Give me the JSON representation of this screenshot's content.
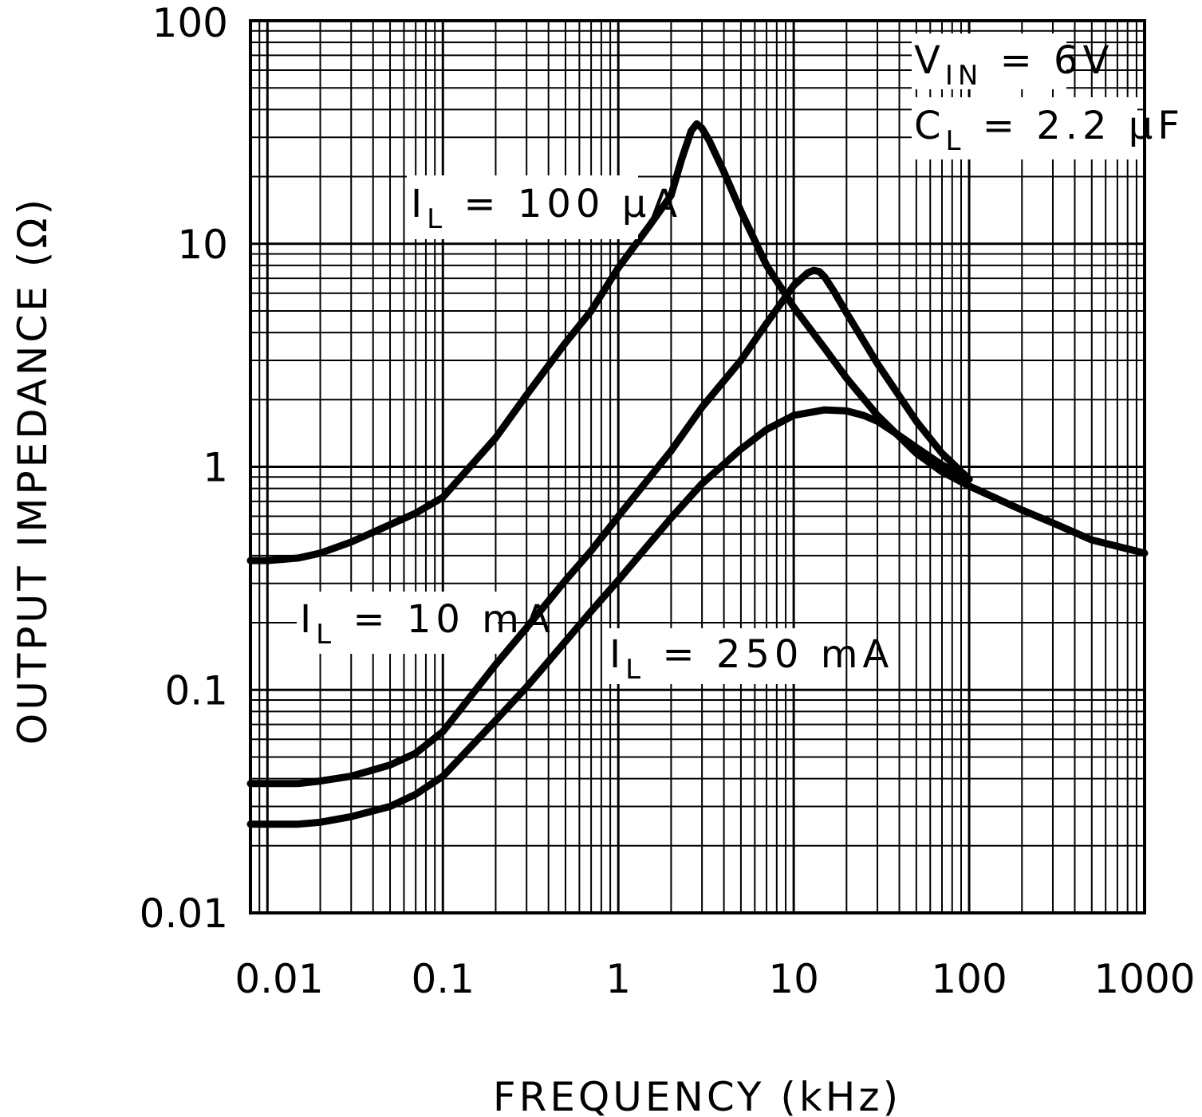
{
  "chart_data": {
    "type": "line",
    "xscale": "log",
    "yscale": "log",
    "xlim": [
      0.008,
      1000
    ],
    "ylim": [
      0.01,
      100
    ],
    "xlabel": "FREQUENCY (kHz)",
    "ylabel": "OUTPUT IMPEDANCE (Ω)",
    "x_ticks": [
      {
        "value": 0.01,
        "label": "0.01"
      },
      {
        "value": 0.1,
        "label": "0.1"
      },
      {
        "value": 1,
        "label": "1"
      },
      {
        "value": 10,
        "label": "10"
      },
      {
        "value": 100,
        "label": "100"
      },
      {
        "value": 1000,
        "label": "1000"
      }
    ],
    "y_ticks": [
      {
        "value": 0.01,
        "label": "0.01"
      },
      {
        "value": 0.1,
        "label": "0.1"
      },
      {
        "value": 1,
        "label": "1"
      },
      {
        "value": 10,
        "label": "10"
      },
      {
        "value": 100,
        "label": "100"
      }
    ],
    "grid": true,
    "conditions": {
      "vin": {
        "sym": "V",
        "sub": "IN",
        "rest": " = 6V"
      },
      "cl": {
        "sym": "C",
        "sub": "L",
        "rest": " = 2.2 μF"
      }
    },
    "series": [
      {
        "name": "IL = 100 μA",
        "label": {
          "sym": "I",
          "sub": "L",
          "rest": " = 100 μA"
        },
        "x": [
          0.008,
          0.01,
          0.015,
          0.02,
          0.03,
          0.05,
          0.07,
          0.1,
          0.2,
          0.3,
          0.5,
          0.7,
          1,
          1.5,
          2,
          2.3,
          2.6,
          2.8,
          3,
          3.3,
          4,
          5,
          7,
          10,
          15,
          20,
          30,
          50,
          70,
          100,
          200,
          300,
          500,
          700,
          1000
        ],
        "y": [
          0.38,
          0.38,
          0.39,
          0.41,
          0.46,
          0.55,
          0.62,
          0.73,
          1.35,
          2.1,
          3.6,
          5.0,
          7.8,
          12,
          16.5,
          24,
          32,
          34.5,
          33,
          29,
          21,
          14,
          8,
          5.2,
          3.4,
          2.5,
          1.7,
          1.15,
          0.95,
          0.82,
          0.64,
          0.56,
          0.47,
          0.44,
          0.41
        ]
      },
      {
        "name": "IL = 10 mA",
        "label": {
          "sym": "I",
          "sub": "L",
          "rest": " = 10 mA"
        },
        "x": [
          0.008,
          0.01,
          0.015,
          0.02,
          0.03,
          0.05,
          0.07,
          0.1,
          0.2,
          0.3,
          0.5,
          0.7,
          1,
          2,
          3,
          5,
          7,
          10,
          12,
          13,
          14,
          15,
          17,
          20,
          30,
          50,
          70,
          100
        ],
        "y": [
          0.038,
          0.038,
          0.038,
          0.039,
          0.041,
          0.046,
          0.052,
          0.065,
          0.13,
          0.19,
          0.31,
          0.42,
          0.6,
          1.18,
          1.85,
          3.0,
          4.4,
          6.5,
          7.4,
          7.6,
          7.5,
          7.1,
          6.1,
          4.9,
          2.9,
          1.6,
          1.15,
          0.88
        ]
      },
      {
        "name": "IL = 250 mA",
        "label": {
          "sym": "I",
          "sub": "L",
          "rest": " = 250 mA"
        },
        "x": [
          0.008,
          0.01,
          0.015,
          0.02,
          0.03,
          0.05,
          0.07,
          0.1,
          0.2,
          0.3,
          0.5,
          0.7,
          1,
          2,
          3,
          5,
          7,
          10,
          15,
          20,
          25,
          30,
          40,
          50,
          70,
          100
        ],
        "y": [
          0.025,
          0.025,
          0.025,
          0.0255,
          0.027,
          0.03,
          0.034,
          0.041,
          0.073,
          0.103,
          0.165,
          0.225,
          0.31,
          0.59,
          0.84,
          1.2,
          1.47,
          1.7,
          1.8,
          1.78,
          1.7,
          1.6,
          1.38,
          1.22,
          1.02,
          0.88
        ]
      }
    ]
  }
}
